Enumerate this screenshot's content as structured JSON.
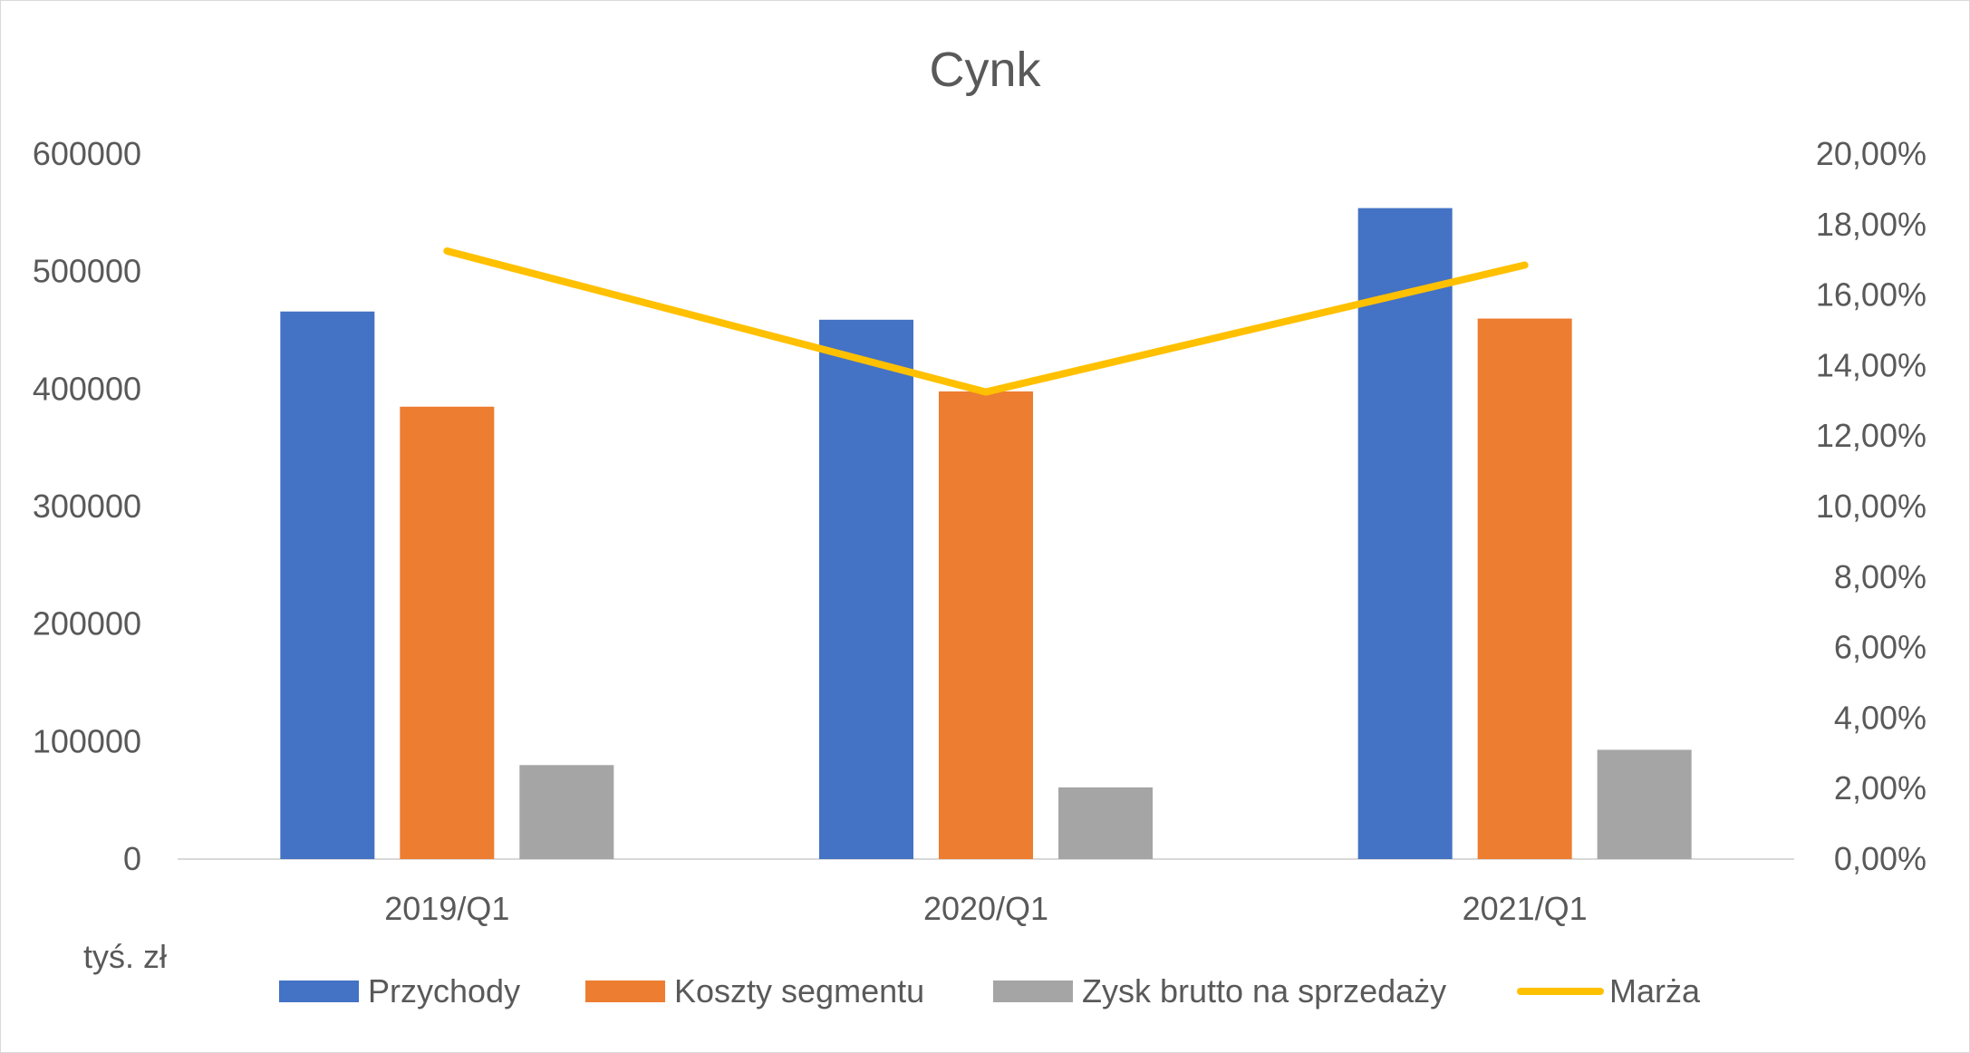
{
  "chart_data": {
    "type": "bar",
    "title": "Cynk",
    "unit_label": "tyś. zł",
    "categories": [
      "2019/Q1",
      "2020/Q1",
      "2021/Q1"
    ],
    "series": [
      {
        "name": "Przychody",
        "type": "bar",
        "axis": "left",
        "color": "#4472C4",
        "values": [
          466000,
          459000,
          554000
        ]
      },
      {
        "name": "Koszty segmentu",
        "type": "bar",
        "axis": "left",
        "color": "#ED7D31",
        "values": [
          385000,
          398000,
          460000
        ]
      },
      {
        "name": "Zysk brutto na sprzedaży",
        "type": "bar",
        "axis": "left",
        "color": "#A5A5A5",
        "values": [
          80000,
          61000,
          93000
        ]
      },
      {
        "name": "Marża",
        "type": "line",
        "axis": "right",
        "color": "#FFC000",
        "values": [
          0.1725,
          0.1325,
          0.1685
        ]
      }
    ],
    "y_left": {
      "ylim": [
        0,
        600000
      ],
      "ticks": [
        "0",
        "100000",
        "200000",
        "300000",
        "400000",
        "500000",
        "600000"
      ]
    },
    "y_right": {
      "ylim": [
        0,
        0.2
      ],
      "ticks": [
        "0,00%",
        "2,00%",
        "4,00%",
        "6,00%",
        "8,00%",
        "10,00%",
        "12,00%",
        "14,00%",
        "16,00%",
        "18,00%",
        "20,00%"
      ]
    },
    "legend_position": "bottom",
    "grid": false
  }
}
